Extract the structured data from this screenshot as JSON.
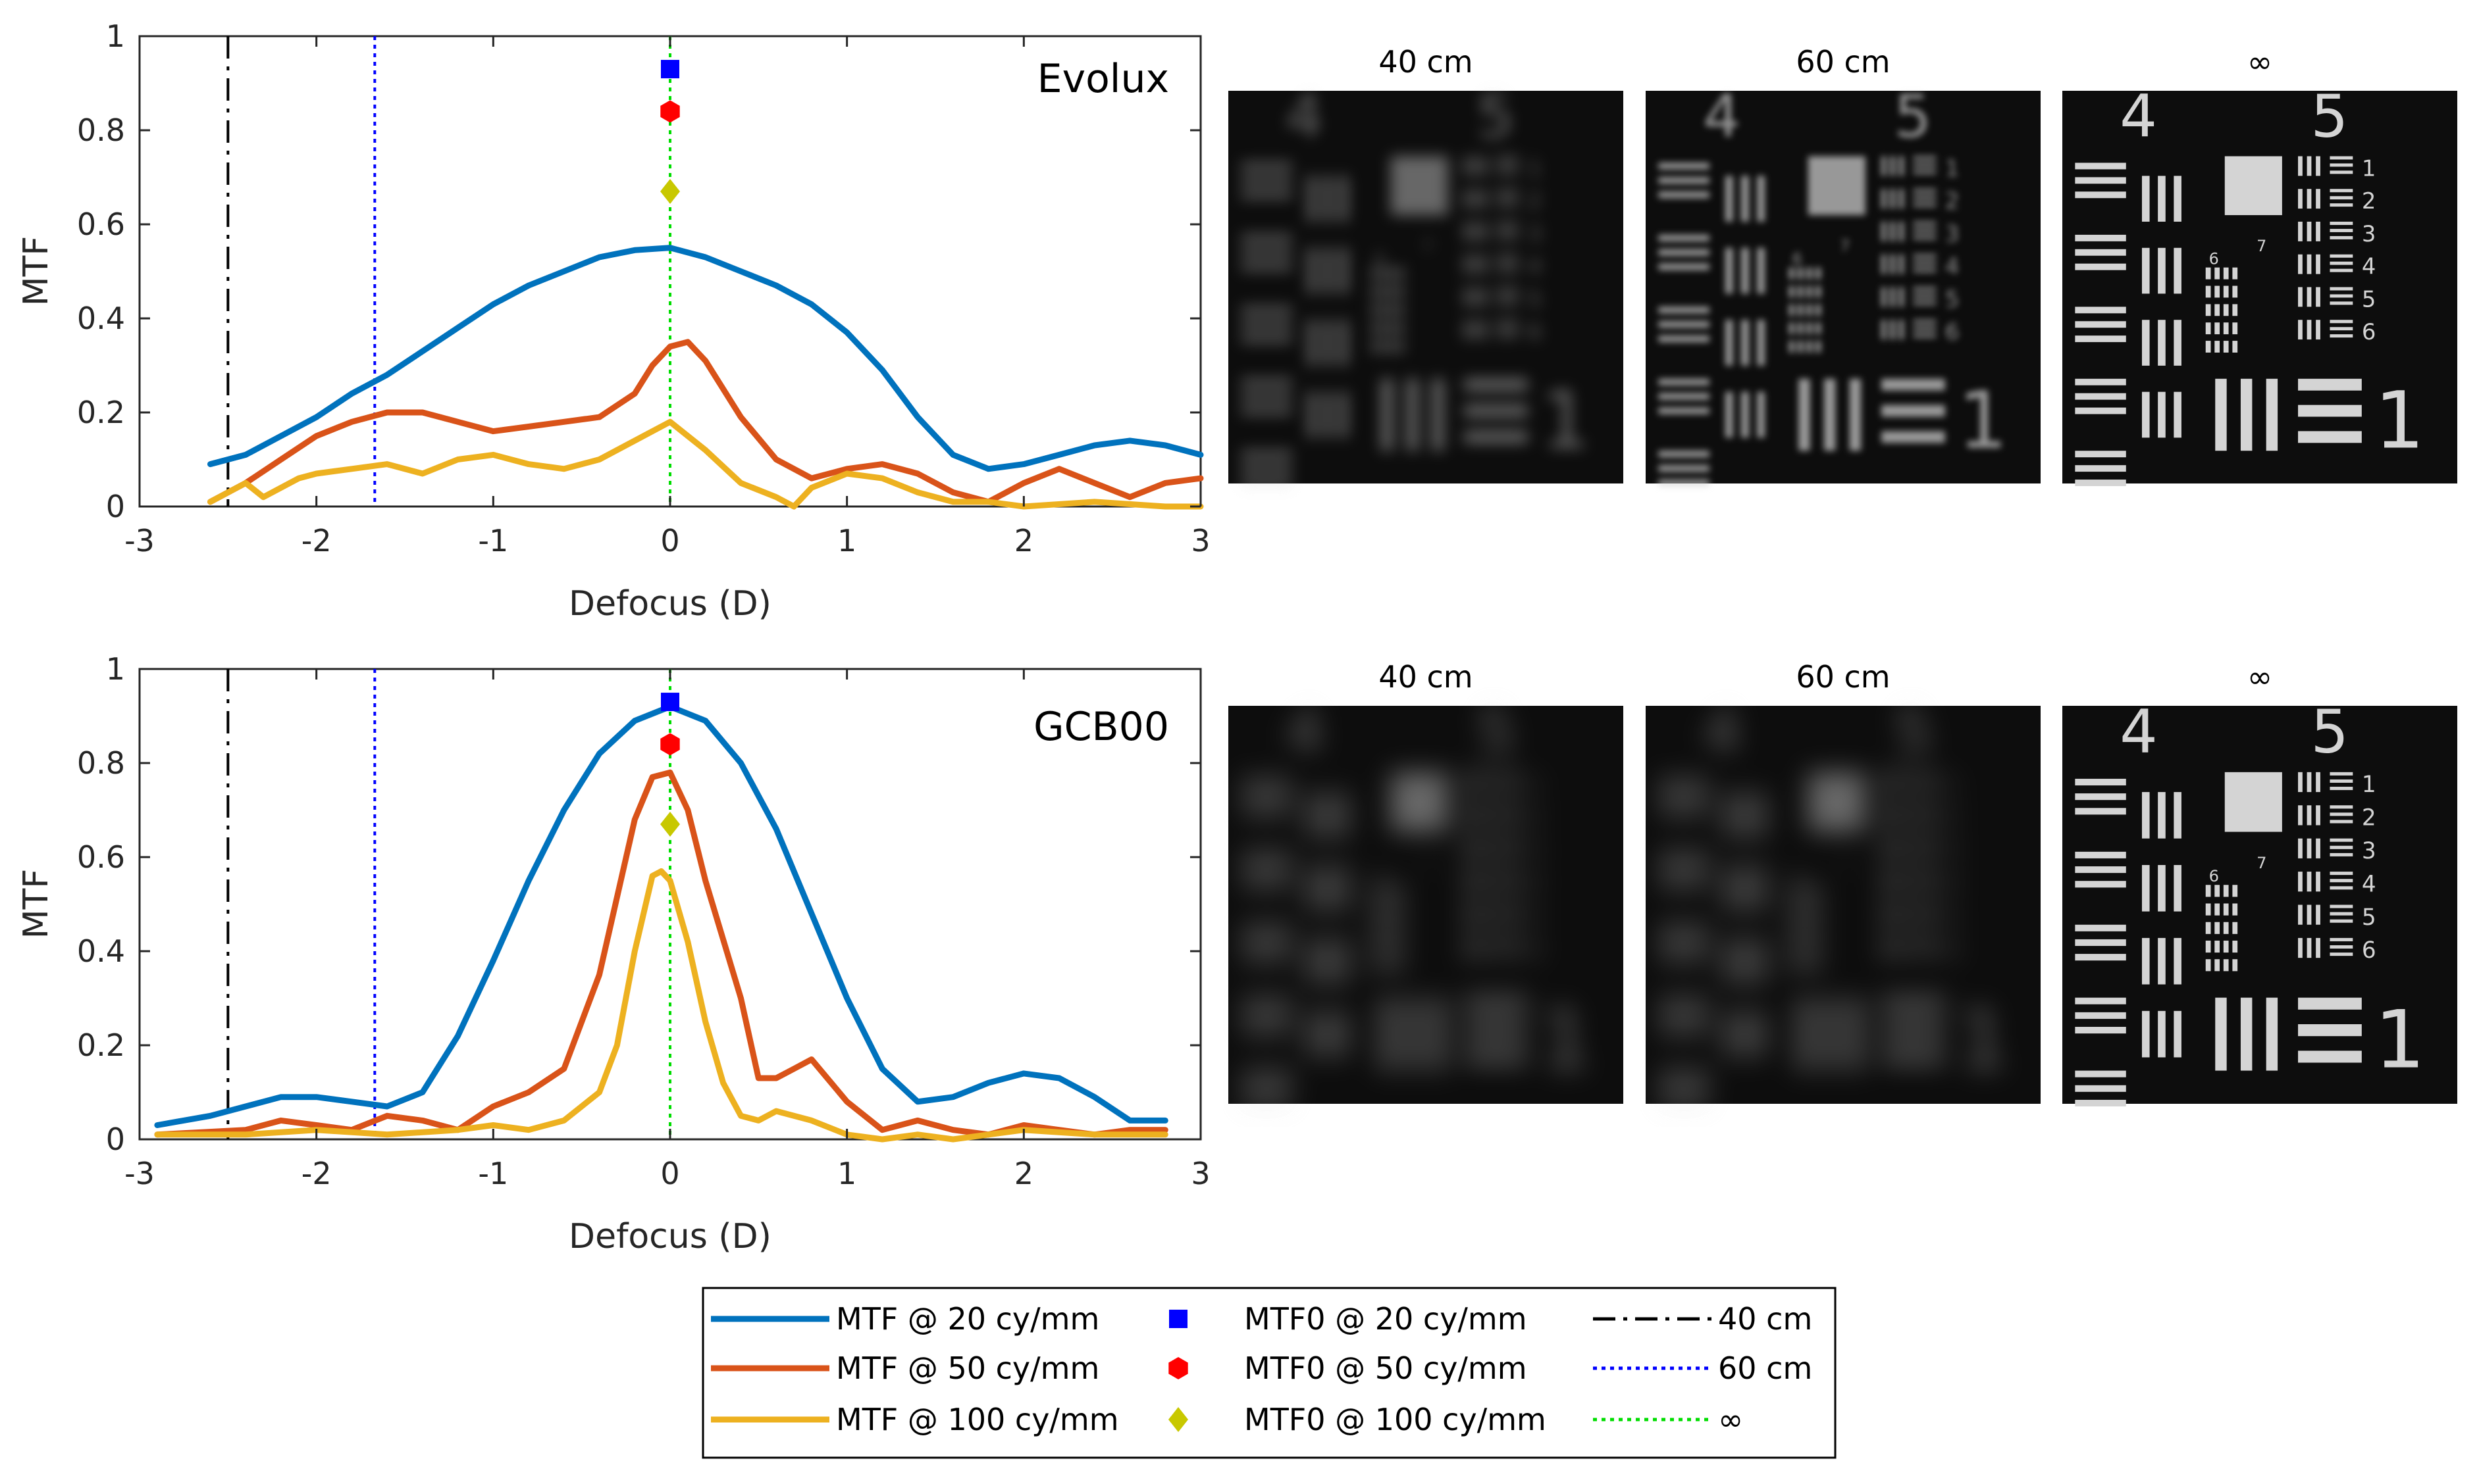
{
  "chart_data": [
    {
      "type": "line",
      "title": "Evolux",
      "xlabel": "Defocus (D)",
      "ylabel": "MTF",
      "xlim": [
        -3,
        3
      ],
      "ylim": [
        0,
        1
      ],
      "xticks": [
        "-3",
        "-2",
        "-1",
        "0",
        "1",
        "2",
        "3"
      ],
      "yticks": [
        "0",
        "0.2",
        "0.4",
        "0.6",
        "0.8",
        "1"
      ],
      "grid": false,
      "series": [
        {
          "name": "MTF @ 20 cy/mm",
          "color": "#0072BD",
          "style": "solid",
          "x": [
            -2.6,
            -2.4,
            -2.2,
            -2.0,
            -1.8,
            -1.6,
            -1.4,
            -1.2,
            -1.0,
            -0.8,
            -0.6,
            -0.4,
            -0.2,
            0.0,
            0.2,
            0.4,
            0.6,
            0.8,
            1.0,
            1.2,
            1.4,
            1.6,
            1.8,
            2.0,
            2.2,
            2.4,
            2.6,
            2.8,
            3.0
          ],
          "y": [
            0.09,
            0.11,
            0.15,
            0.19,
            0.24,
            0.28,
            0.33,
            0.38,
            0.43,
            0.47,
            0.5,
            0.53,
            0.545,
            0.55,
            0.53,
            0.5,
            0.47,
            0.43,
            0.37,
            0.29,
            0.19,
            0.11,
            0.08,
            0.09,
            0.11,
            0.13,
            0.14,
            0.13,
            0.11
          ]
        },
        {
          "name": "MTF @ 50 cy/mm",
          "color": "#D95319",
          "style": "solid",
          "x": [
            -2.6,
            -2.4,
            -2.2,
            -2.0,
            -1.8,
            -1.6,
            -1.4,
            -1.2,
            -1.0,
            -0.8,
            -0.6,
            -0.4,
            -0.2,
            -0.1,
            0.0,
            0.1,
            0.2,
            0.4,
            0.6,
            0.8,
            1.0,
            1.2,
            1.4,
            1.6,
            1.8,
            2.0,
            2.2,
            2.4,
            2.6,
            2.8,
            3.0
          ],
          "y": [
            0.01,
            0.05,
            0.1,
            0.15,
            0.18,
            0.2,
            0.2,
            0.18,
            0.16,
            0.17,
            0.18,
            0.19,
            0.24,
            0.3,
            0.34,
            0.35,
            0.31,
            0.19,
            0.1,
            0.06,
            0.08,
            0.09,
            0.07,
            0.03,
            0.01,
            0.05,
            0.08,
            0.05,
            0.02,
            0.05,
            0.06
          ]
        },
        {
          "name": "MTF @ 100 cy/mm",
          "color": "#EDB120",
          "style": "solid",
          "x": [
            -2.6,
            -2.4,
            -2.3,
            -2.1,
            -2.0,
            -1.8,
            -1.6,
            -1.4,
            -1.2,
            -1.0,
            -0.8,
            -0.6,
            -0.4,
            -0.2,
            0.0,
            0.2,
            0.4,
            0.6,
            0.7,
            0.8,
            1.0,
            1.2,
            1.4,
            1.6,
            1.8,
            2.0,
            2.4,
            2.8,
            3.0
          ],
          "y": [
            0.01,
            0.05,
            0.02,
            0.06,
            0.07,
            0.08,
            0.09,
            0.07,
            0.1,
            0.11,
            0.09,
            0.08,
            0.1,
            0.14,
            0.18,
            0.12,
            0.05,
            0.02,
            0.0,
            0.04,
            0.07,
            0.06,
            0.03,
            0.01,
            0.01,
            0.0,
            0.01,
            0.0,
            0.0
          ]
        },
        {
          "name": "40 cm",
          "color": "#000000",
          "style": "dashdot",
          "vline": -2.5
        },
        {
          "name": "60 cm",
          "color": "#0000FF",
          "style": "dotted",
          "vline": -1.67
        },
        {
          "name": "∞",
          "color": "#00DD00",
          "style": "dotted",
          "vline": 0.0
        },
        {
          "name": "MTF0 @ 20 cy/mm",
          "color": "#0000FF",
          "marker": "square",
          "x": [
            0.0
          ],
          "y": [
            0.93
          ]
        },
        {
          "name": "MTF0 @ 50 cy/mm",
          "color": "#FF0000",
          "marker": "hexagon",
          "x": [
            0.0
          ],
          "y": [
            0.84
          ]
        },
        {
          "name": "MTF0 @ 100 cy/mm",
          "color": "#C8C800",
          "marker": "diamond",
          "x": [
            0.0
          ],
          "y": [
            0.67
          ]
        }
      ]
    },
    {
      "type": "line",
      "title": "GCB00",
      "xlabel": "Defocus (D)",
      "ylabel": "MTF",
      "xlim": [
        -3,
        3
      ],
      "ylim": [
        0,
        1
      ],
      "xticks": [
        "-3",
        "-2",
        "-1",
        "0",
        "1",
        "2",
        "3"
      ],
      "yticks": [
        "0",
        "0.2",
        "0.4",
        "0.6",
        "0.8",
        "1"
      ],
      "grid": false,
      "series": [
        {
          "name": "MTF @ 20 cy/mm",
          "color": "#0072BD",
          "style": "solid",
          "x": [
            -2.9,
            -2.6,
            -2.4,
            -2.2,
            -2.0,
            -1.8,
            -1.6,
            -1.4,
            -1.2,
            -1.0,
            -0.8,
            -0.6,
            -0.4,
            -0.2,
            0.0,
            0.2,
            0.4,
            0.6,
            0.8,
            1.0,
            1.2,
            1.4,
            1.6,
            1.8,
            2.0,
            2.2,
            2.4,
            2.6,
            2.8
          ],
          "y": [
            0.03,
            0.05,
            0.07,
            0.09,
            0.09,
            0.08,
            0.07,
            0.1,
            0.22,
            0.38,
            0.55,
            0.7,
            0.82,
            0.89,
            0.92,
            0.89,
            0.8,
            0.66,
            0.48,
            0.3,
            0.15,
            0.08,
            0.09,
            0.12,
            0.14,
            0.13,
            0.09,
            0.04,
            0.04
          ]
        },
        {
          "name": "MTF @ 50 cy/mm",
          "color": "#D95319",
          "style": "solid",
          "x": [
            -2.9,
            -2.4,
            -2.2,
            -2.0,
            -1.8,
            -1.6,
            -1.4,
            -1.2,
            -1.0,
            -0.8,
            -0.6,
            -0.4,
            -0.2,
            -0.1,
            0.0,
            0.1,
            0.2,
            0.4,
            0.5,
            0.6,
            0.7,
            0.8,
            1.0,
            1.2,
            1.4,
            1.6,
            1.8,
            2.0,
            2.2,
            2.4,
            2.6,
            2.8
          ],
          "y": [
            0.01,
            0.02,
            0.04,
            0.03,
            0.02,
            0.05,
            0.04,
            0.02,
            0.07,
            0.1,
            0.15,
            0.35,
            0.68,
            0.77,
            0.78,
            0.7,
            0.55,
            0.3,
            0.13,
            0.13,
            0.15,
            0.17,
            0.08,
            0.02,
            0.04,
            0.02,
            0.01,
            0.03,
            0.02,
            0.01,
            0.02,
            0.02
          ]
        },
        {
          "name": "MTF @ 100 cy/mm",
          "color": "#EDB120",
          "style": "solid",
          "x": [
            -2.9,
            -2.4,
            -2.0,
            -1.6,
            -1.2,
            -1.0,
            -0.8,
            -0.6,
            -0.4,
            -0.3,
            -0.2,
            -0.1,
            -0.05,
            0.0,
            0.1,
            0.2,
            0.3,
            0.4,
            0.5,
            0.6,
            0.8,
            1.0,
            1.2,
            1.4,
            1.6,
            2.0,
            2.4,
            2.8
          ],
          "y": [
            0.01,
            0.01,
            0.02,
            0.01,
            0.02,
            0.03,
            0.02,
            0.04,
            0.1,
            0.2,
            0.4,
            0.56,
            0.57,
            0.55,
            0.42,
            0.25,
            0.12,
            0.05,
            0.04,
            0.06,
            0.04,
            0.01,
            0.0,
            0.01,
            0.0,
            0.02,
            0.01,
            0.01
          ]
        },
        {
          "name": "40 cm",
          "color": "#000000",
          "style": "dashdot",
          "vline": -2.5
        },
        {
          "name": "60 cm",
          "color": "#0000FF",
          "style": "dotted",
          "vline": -1.67
        },
        {
          "name": "∞",
          "color": "#00DD00",
          "style": "dotted",
          "vline": 0.0
        },
        {
          "name": "MTF0 @ 20 cy/mm",
          "color": "#0000FF",
          "marker": "square",
          "x": [
            0.0
          ],
          "y": [
            0.93
          ]
        },
        {
          "name": "MTF0 @ 50 cy/mm",
          "color": "#FF0000",
          "marker": "hexagon",
          "x": [
            0.0
          ],
          "y": [
            0.84
          ]
        },
        {
          "name": "MTF0 @ 100 cy/mm",
          "color": "#C8C800",
          "marker": "diamond",
          "x": [
            0.0
          ],
          "y": [
            0.67
          ]
        }
      ]
    }
  ],
  "images": {
    "evolux": [
      {
        "caption": "40 cm",
        "blur": 2,
        "brightness": 0.45
      },
      {
        "caption": "60 cm",
        "blur": 1,
        "brightness": 0.7
      },
      {
        "caption": "∞",
        "blur": 0,
        "brightness": 1.0
      }
    ],
    "gcb00": [
      {
        "caption": "40 cm",
        "blur": 3,
        "brightness": 0.45
      },
      {
        "caption": "60 cm",
        "blur": 3,
        "brightness": 0.45
      },
      {
        "caption": "∞",
        "blur": 0,
        "brightness": 1.0
      }
    ],
    "target_numbers": {
      "group_left": "4",
      "group_right": "5",
      "big_one": "1",
      "small": [
        "1",
        "2",
        "3",
        "4",
        "5",
        "6"
      ],
      "tiny": [
        "6",
        "7"
      ]
    }
  },
  "legend": {
    "position": "bottom-center",
    "entries": [
      {
        "label": "MTF @ 20 cy/mm",
        "kind": "line",
        "color": "#0072BD"
      },
      {
        "label": "MTF @ 50 cy/mm",
        "kind": "line",
        "color": "#D95319"
      },
      {
        "label": "MTF @ 100 cy/mm",
        "kind": "line",
        "color": "#EDB120"
      },
      {
        "label": "MTF0 @ 20 cy/mm",
        "kind": "square",
        "color": "#0000FF"
      },
      {
        "label": "MTF0 @ 50 cy/mm",
        "kind": "hexagon",
        "color": "#FF0000"
      },
      {
        "label": "MTF0 @ 100 cy/mm",
        "kind": "diamond",
        "color": "#C8C800"
      },
      {
        "label": "40 cm",
        "kind": "dashdot",
        "color": "#000000"
      },
      {
        "label": "60 cm",
        "kind": "dotted",
        "color": "#0000FF"
      },
      {
        "label": "∞",
        "kind": "dotted",
        "color": "#00DD00"
      }
    ]
  }
}
